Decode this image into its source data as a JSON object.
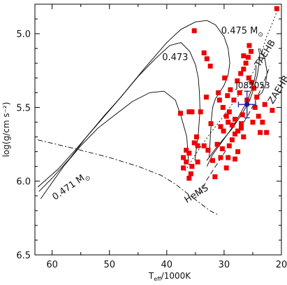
{
  "chart_data": {
    "type": "scatter",
    "xlabel": "T",
    "xlabel_sub": "eff",
    "xlabel_suffix": "/1000K",
    "ylabel": "log(g/cm s⁻²)",
    "xlim": [
      63,
      20
    ],
    "ylim": [
      6.5,
      4.8
    ],
    "xticks": [
      60,
      50,
      40,
      30,
      20
    ],
    "yticks": [
      5.0,
      5.5,
      6.0,
      6.5
    ],
    "ytick_labels": [
      "5.0",
      "5.5",
      "6.0",
      "6.5"
    ],
    "grid": false,
    "colors": {
      "points": "#ee0000",
      "highlight": "#1a1aa8",
      "lines": "#000000"
    },
    "annotations": [
      {
        "text": "0.475 M",
        "symbol": "⊙",
        "x": 30.5,
        "y": 5.0,
        "rotate": 0
      },
      {
        "text": "0.473",
        "x": 40.8,
        "y": 5.18,
        "rotate": 0
      },
      {
        "text": "0.471 M",
        "symbol": "⊙",
        "x": 59.5,
        "y": 6.13,
        "rotate": -35
      },
      {
        "text": "HeMS",
        "x": 36.5,
        "y": 6.15,
        "rotate": -32
      },
      {
        "text": "TAEHB",
        "x": 23.8,
        "y": 5.23,
        "rotate": -58
      },
      {
        "text": "ZAEHB",
        "x": 21.5,
        "y": 5.48,
        "rotate": -58
      },
      {
        "text": "J082053",
        "x": 28.0,
        "y": 5.37,
        "rotate": 0,
        "color": "#1a1aa8"
      }
    ],
    "highlight": {
      "name": "J082053",
      "x": 26.0,
      "y": 5.48,
      "xerr": 1.5,
      "yerr": 0.09
    },
    "points": [
      [
        20.8,
        4.83
      ],
      [
        35.2,
        4.98
      ],
      [
        33.5,
        5.13
      ],
      [
        33.0,
        5.17
      ],
      [
        32.4,
        5.22
      ],
      [
        31.0,
        5.4
      ],
      [
        29.9,
        5.3
      ],
      [
        29.4,
        5.42
      ],
      [
        28.9,
        5.38
      ],
      [
        28.3,
        5.45
      ],
      [
        27.7,
        5.32
      ],
      [
        27.1,
        5.27
      ],
      [
        26.6,
        5.24
      ],
      [
        26.2,
        5.2
      ],
      [
        25.8,
        5.16
      ],
      [
        25.3,
        5.12
      ],
      [
        25.7,
        5.3
      ],
      [
        25.2,
        5.33
      ],
      [
        24.8,
        5.37
      ],
      [
        24.3,
        5.43
      ],
      [
        24.6,
        5.5
      ],
      [
        24.0,
        5.56
      ],
      [
        23.3,
        5.6
      ],
      [
        23.7,
        5.67
      ],
      [
        22.6,
        5.67
      ],
      [
        21.6,
        5.52
      ],
      [
        22.9,
        5.48
      ],
      [
        30.2,
        5.5
      ],
      [
        29.6,
        5.56
      ],
      [
        29.1,
        5.53
      ],
      [
        28.6,
        5.62
      ],
      [
        28.1,
        5.58
      ],
      [
        27.6,
        5.66
      ],
      [
        27.0,
        5.61
      ],
      [
        26.6,
        5.7
      ],
      [
        27.6,
        5.8
      ],
      [
        28.1,
        5.68
      ],
      [
        29.1,
        5.76
      ],
      [
        30.1,
        5.66
      ],
      [
        31.2,
        5.75
      ],
      [
        30.6,
        5.84
      ],
      [
        29.6,
        5.91
      ],
      [
        28.1,
        5.85
      ],
      [
        32.0,
        5.86
      ],
      [
        31.6,
        5.97
      ],
      [
        37.6,
        5.54
      ],
      [
        36.1,
        5.53
      ],
      [
        35.6,
        5.53
      ],
      [
        34.1,
        5.53
      ],
      [
        34.8,
        5.7
      ],
      [
        35.2,
        5.74
      ],
      [
        34.6,
        5.76
      ],
      [
        33.5,
        5.76
      ],
      [
        32.8,
        5.79
      ],
      [
        36.1,
        5.81
      ],
      [
        37.1,
        5.84
      ],
      [
        36.6,
        5.87
      ],
      [
        35.6,
        5.9
      ],
      [
        34.6,
        5.87
      ],
      [
        35.8,
        5.95
      ],
      [
        37.1,
        5.91
      ],
      [
        36.6,
        5.79
      ],
      [
        33.1,
        5.43
      ],
      [
        30.8,
        5.45
      ],
      [
        29.3,
        5.6
      ],
      [
        25.0,
        5.6
      ],
      [
        26.0,
        5.45
      ],
      [
        26.6,
        5.15
      ],
      [
        25.6,
        5.08
      ],
      [
        26.8,
        5.55
      ],
      [
        27.0,
        5.64
      ],
      [
        36.1,
        5.98
      ],
      [
        32.3,
        5.61
      ],
      [
        30.3,
        5.78
      ],
      [
        29.3,
        5.84
      ],
      [
        28.6,
        5.72
      ],
      [
        27.3,
        5.4
      ],
      [
        30.6,
        5.63
      ]
    ],
    "tracks": [
      {
        "name": "0.475 M",
        "x": [
          62.5,
          59,
          56,
          52,
          48,
          44,
          40,
          37.5,
          35,
          33,
          31.5,
          30,
          29.3,
          29,
          29.3,
          30,
          30.8,
          31.5,
          32,
          32.2,
          32.4,
          32.6
        ],
        "y": [
          6.04,
          5.92,
          5.79,
          5.61,
          5.43,
          5.24,
          5.06,
          4.97,
          4.92,
          4.91,
          4.94,
          5.02,
          5.1,
          5.2,
          5.28,
          5.35,
          5.4,
          5.44,
          5.5,
          5.58,
          5.7,
          5.84
        ]
      },
      {
        "name": "0.473",
        "x": [
          62.3,
          60,
          57,
          54,
          51,
          48,
          45,
          42,
          39.5,
          37.5,
          36,
          35,
          34.5,
          34.3,
          34.2,
          34.5,
          35.1
        ],
        "y": [
          6.07,
          5.98,
          5.85,
          5.7,
          5.56,
          5.43,
          5.29,
          5.17,
          5.08,
          5.06,
          5.12,
          5.21,
          5.3,
          5.4,
          5.52,
          5.68,
          5.86
        ]
      },
      {
        "name": "0.471 M",
        "x": [
          62.0,
          60,
          58,
          55,
          52,
          49,
          46,
          43,
          40.5,
          38.5,
          37.5,
          36.5,
          36.2
        ],
        "y": [
          6.12,
          6.01,
          5.9,
          5.76,
          5.64,
          5.55,
          5.46,
          5.4,
          5.39,
          5.45,
          5.56,
          5.7,
          5.87
        ]
      },
      {
        "name": "HeMS",
        "x": [
          62.5,
          56,
          50,
          45,
          41,
          38.5,
          36.5,
          34.5,
          32.5,
          31
        ],
        "y": [
          5.72,
          5.78,
          5.84,
          5.9,
          5.96,
          6.02,
          6.08,
          6.14,
          6.2,
          6.23
        ]
      },
      {
        "name": "TAEHB",
        "x": [
          36.8,
          34.5,
          32.5,
          30.5,
          29,
          27.5,
          26,
          24.8,
          24,
          23.2,
          22.6,
          22,
          21.5,
          21.1,
          20.7
        ],
        "y": [
          5.93,
          5.79,
          5.68,
          5.58,
          5.5,
          5.42,
          5.34,
          5.25,
          5.17,
          5.1,
          5.02,
          4.97,
          4.92,
          4.88,
          4.84
        ]
      },
      {
        "name": "ZAEHB",
        "x": [
          34.2,
          33,
          31.5,
          30,
          28.5,
          27,
          25.5,
          24.2,
          23,
          22
        ],
        "y": [
          6.09,
          5.99,
          5.9,
          5.81,
          5.72,
          5.63,
          5.53,
          5.43,
          5.32,
          5.22
        ]
      },
      {
        "name": "interior-1",
        "x": [
          33,
          31.5,
          30,
          28.5,
          27.5,
          26.5,
          25.5,
          24.8,
          24.2,
          23.9,
          23.8,
          24
        ],
        "y": [
          5.86,
          5.78,
          5.71,
          5.64,
          5.58,
          5.52,
          5.45,
          5.37,
          5.28,
          5.2,
          5.14,
          5.1
        ]
      },
      {
        "name": "interior-2",
        "x": [
          33,
          32,
          30.5,
          29,
          28,
          27,
          26,
          25.3,
          24.8,
          24.5,
          24.4
        ],
        "y": [
          5.9,
          5.82,
          5.74,
          5.66,
          5.6,
          5.53,
          5.46,
          5.39,
          5.33,
          5.27,
          5.22
        ]
      },
      {
        "name": "interior-3",
        "x": [
          23.8,
          22.9,
          22.5,
          22.8,
          23.4,
          24.2
        ],
        "y": [
          5.1,
          5.17,
          5.26,
          5.35,
          5.4,
          5.43
        ]
      }
    ]
  }
}
